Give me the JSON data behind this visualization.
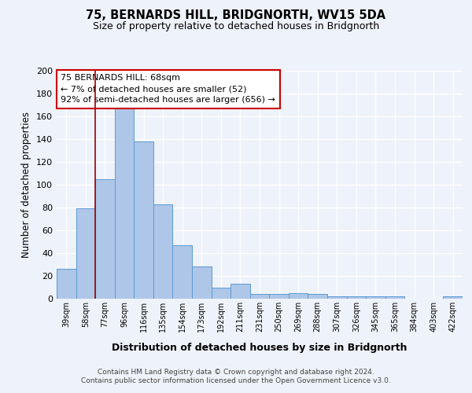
{
  "title1": "75, BERNARDS HILL, BRIDGNORTH, WV15 5DA",
  "title2": "Size of property relative to detached houses in Bridgnorth",
  "xlabel": "Distribution of detached houses by size in Bridgnorth",
  "ylabel": "Number of detached properties",
  "categories": [
    "39sqm",
    "58sqm",
    "77sqm",
    "96sqm",
    "116sqm",
    "135sqm",
    "154sqm",
    "173sqm",
    "192sqm",
    "211sqm",
    "231sqm",
    "250sqm",
    "269sqm",
    "288sqm",
    "307sqm",
    "326sqm",
    "345sqm",
    "365sqm",
    "384sqm",
    "403sqm",
    "422sqm"
  ],
  "values": [
    26,
    79,
    105,
    168,
    138,
    83,
    47,
    28,
    10,
    13,
    4,
    4,
    5,
    4,
    2,
    2,
    2,
    2,
    0,
    0,
    2
  ],
  "bar_color": "#aec6e8",
  "bar_edge_color": "#5b9bd5",
  "background_color": "#eef2fa",
  "grid_color": "#ffffff",
  "annotation_text": "75 BERNARDS HILL: 68sqm\n← 7% of detached houses are smaller (52)\n92% of semi-detached houses are larger (656) →",
  "annotation_box_color": "#ffffff",
  "annotation_box_edge": "#cc0000",
  "red_line_x": 1.5,
  "ylim": [
    0,
    200
  ],
  "yticks": [
    0,
    20,
    40,
    60,
    80,
    100,
    120,
    140,
    160,
    180,
    200
  ],
  "footer1": "Contains HM Land Registry data © Crown copyright and database right 2024.",
  "footer2": "Contains public sector information licensed under the Open Government Licence v3.0."
}
